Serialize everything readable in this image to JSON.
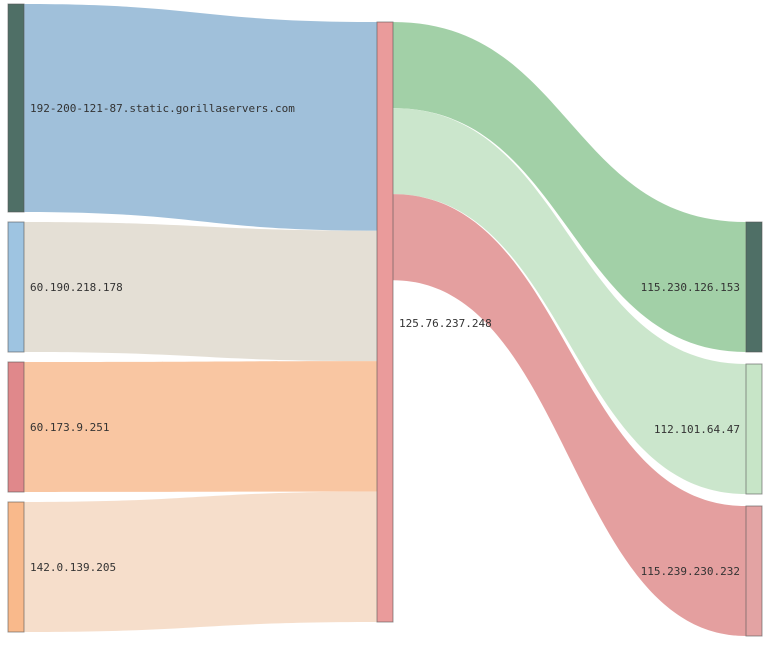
{
  "diagram": {
    "type": "sankey",
    "nodes": [
      {
        "id": "n1",
        "label": "192-200-121-87.static.gorillaservers.com",
        "color": "#4f6f66"
      },
      {
        "id": "n2",
        "label": "60.190.218.178",
        "color": "#9ec4e1"
      },
      {
        "id": "n3",
        "label": "60.173.9.251",
        "color": "#e0888b"
      },
      {
        "id": "n4",
        "label": "142.0.139.205",
        "color": "#f9b98b"
      },
      {
        "id": "n5",
        "label": "125.76.237.248",
        "color": "#ea9b9b"
      },
      {
        "id": "n6",
        "label": "115.230.126.153",
        "color": "#4f6f66"
      },
      {
        "id": "n7",
        "label": "112.101.64.47",
        "color": "#c7e5c7"
      },
      {
        "id": "n8",
        "label": "115.239.230.232",
        "color": "#e3a3a3"
      }
    ],
    "links": [
      {
        "source": "n1",
        "target": "n5",
        "value": 1.6,
        "color": "#9bbdd8"
      },
      {
        "source": "n2",
        "target": "n5",
        "value": 1.0,
        "color": "#e3ddd3"
      },
      {
        "source": "n3",
        "target": "n5",
        "value": 1.0,
        "color": "#f9c39d"
      },
      {
        "source": "n4",
        "target": "n5",
        "value": 1.0,
        "color": "#f6dcc8"
      },
      {
        "source": "n5",
        "target": "n6",
        "value": 1.0,
        "color": "#9dcea2"
      },
      {
        "source": "n5",
        "target": "n7",
        "value": 1.0,
        "color": "#c8e5c9"
      },
      {
        "source": "n5",
        "target": "n8",
        "value": 1.0,
        "color": "#e39a9a"
      }
    ]
  }
}
